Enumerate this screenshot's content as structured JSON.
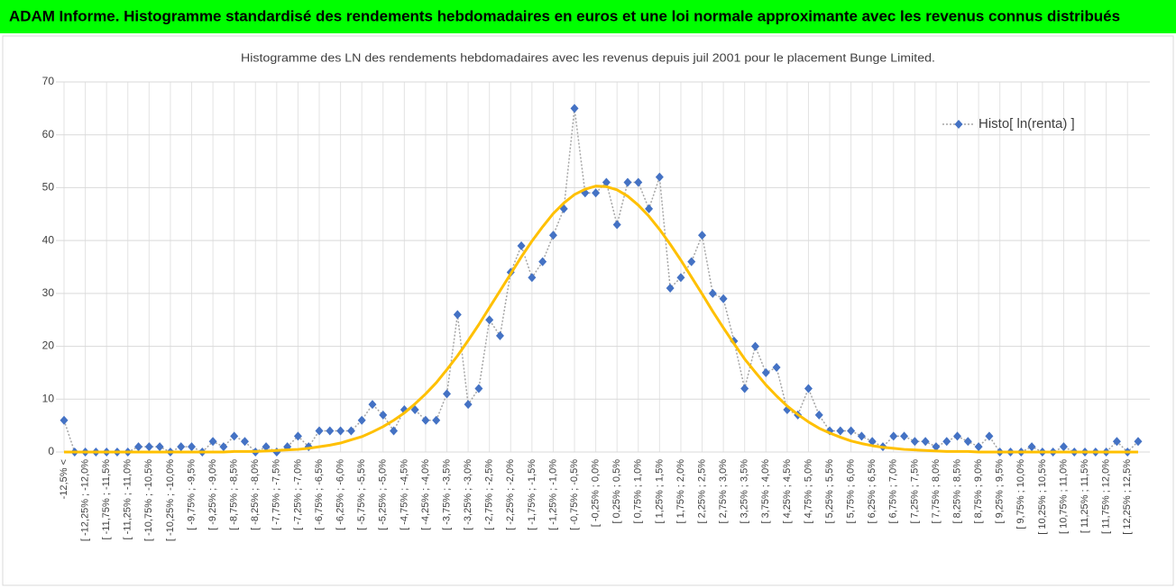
{
  "header": {
    "title": "ADAM Informe. Histogramme standardisé des rendements hebdomadaires en euros et une loi normale approximante avec les revenus connus distribués"
  },
  "chart_data": {
    "type": "line",
    "title": "Histogramme des LN des rendements hebdomadaires avec les revenus depuis juil 2001 pour le placement Bunge Limited.",
    "categories": [
      "-12,5% <",
      null,
      "[ -12,25% ; -12,0%",
      null,
      "[ -11,75% ; -11,5%",
      null,
      "[ -11,25% ; -11,0%",
      null,
      "[ -10,75% ; -10,5%",
      null,
      "[ -10,25% ; -10,0%",
      null,
      "[ -9,75% ; -9,5%",
      null,
      "[ -9,25% ; -9,0%",
      null,
      "[ -8,75% ; -8,5%",
      null,
      "[ -8,25% ; -8,0%",
      null,
      "[ -7,75% ; -7,5%",
      null,
      "[ -7,25% ; -7,0%",
      null,
      "[ -6,75% ; -6,5%",
      null,
      "[ -6,25% ; -6,0%",
      null,
      "[ -5,75% ; -5,5%",
      null,
      "[ -5,25% ; -5,0%",
      null,
      "[ -4,75% ; -4,5%",
      null,
      "[ -4,25% ; -4,0%",
      null,
      "[ -3,75% ; -3,5%",
      null,
      "[ -3,25% ; -3,0%",
      null,
      "[ -2,75% ; -2,5%",
      null,
      "[ -2,25% ; -2,0%",
      null,
      "[ -1,75% ; -1,5%",
      null,
      "[ -1,25% ; -1,0%",
      null,
      "[ -0,75% ; -0,5%",
      null,
      "[ -0,25% ; 0,0%",
      null,
      "[ 0,25% ; 0,5%",
      null,
      "[ 0,75% ; 1,0%",
      null,
      "[ 1,25% ; 1,5%",
      null,
      "[ 1,75% ; 2,0%",
      null,
      "[ 2,25% ; 2,5%",
      null,
      "[ 2,75% ; 3,0%",
      null,
      "[ 3,25% ; 3,5%",
      null,
      "[ 3,75% ; 4,0%",
      null,
      "[ 4,25% ; 4,5%",
      null,
      "[ 4,75% ; 5,0%",
      null,
      "[ 5,25% ; 5,5%",
      null,
      "[ 5,75% ; 6,0%",
      null,
      "[ 6,25% ; 6,5%",
      null,
      "[ 6,75% ; 7,0%",
      null,
      "[ 7,25% ; 7,5%",
      null,
      "[ 7,75% ; 8,0%",
      null,
      "[ 8,25% ; 8,5%",
      null,
      "[ 8,75% ; 9,0%",
      null,
      "[ 9,25% ; 9,5%",
      null,
      "[ 9,75% ; 10,0%",
      null,
      "[ 10,25% ; 10,5%",
      null,
      "[ 10,75% ; 11,0%",
      null,
      "[ 11,25% ; 11,5%",
      null,
      "[ 11,75% ; 12,0%",
      null,
      "[ 12,25% ; 12,5%",
      null
    ],
    "series": [
      {
        "name": "Histo[ ln(renta) ]",
        "color": "#4472c4",
        "line_color": "#a5a5a5",
        "marker": "diamond",
        "values": [
          6,
          0,
          0,
          0,
          0,
          0,
          0,
          1,
          1,
          1,
          0,
          1,
          1,
          0,
          2,
          1,
          3,
          2,
          0,
          1,
          0,
          1,
          3,
          1,
          4,
          4,
          4,
          4,
          6,
          9,
          7,
          4,
          8,
          8,
          6,
          6,
          11,
          26,
          9,
          12,
          25,
          22,
          34,
          39,
          33,
          36,
          41,
          46,
          65,
          49,
          49,
          51,
          43,
          51,
          51,
          46,
          52,
          31,
          33,
          36,
          41,
          30,
          29,
          21,
          12,
          20,
          15,
          16,
          8,
          7,
          12,
          7,
          4,
          4,
          4,
          3,
          2,
          1,
          3,
          3,
          2,
          2,
          1,
          2,
          3,
          2,
          1,
          3,
          0,
          0,
          0,
          1,
          0,
          0,
          1,
          0,
          0,
          0,
          0,
          2,
          0,
          2
        ]
      },
      {
        "color": "#ffc000",
        "smooth": true,
        "values": [
          0,
          0,
          0,
          0,
          0,
          0,
          0,
          0,
          0,
          0,
          0,
          0,
          0,
          0,
          0,
          0,
          0.1,
          0.1,
          0.1,
          0.2,
          0.3,
          0.4,
          0.5,
          0.7,
          1.0,
          1.3,
          1.7,
          2.3,
          2.9,
          3.8,
          4.8,
          6.0,
          7.4,
          9.1,
          11.0,
          13.1,
          15.6,
          18.2,
          21.1,
          24.1,
          27.3,
          30.5,
          33.7,
          36.9,
          39.9,
          42.6,
          45.1,
          47.1,
          48.7,
          49.7,
          50.3,
          50.2,
          49.6,
          48.4,
          46.7,
          44.6,
          42.1,
          39.3,
          36.3,
          33.1,
          29.9,
          26.6,
          23.5,
          20.5,
          17.6,
          15.1,
          12.7,
          10.6,
          8.7,
          7.1,
          5.7,
          4.5,
          3.6,
          2.8,
          2.1,
          1.6,
          1.2,
          0.9,
          0.7,
          0.5,
          0.4,
          0.3,
          0.2,
          0.1,
          0.1,
          0.1,
          0,
          0,
          0,
          0,
          0,
          0,
          0,
          0,
          0,
          0,
          0,
          0,
          0,
          0,
          0,
          0
        ]
      }
    ],
    "ylim": [
      0,
      70
    ],
    "yticks": [
      0,
      10,
      20,
      30,
      40,
      50,
      60,
      70
    ],
    "grid": true,
    "legend": "upper right"
  }
}
